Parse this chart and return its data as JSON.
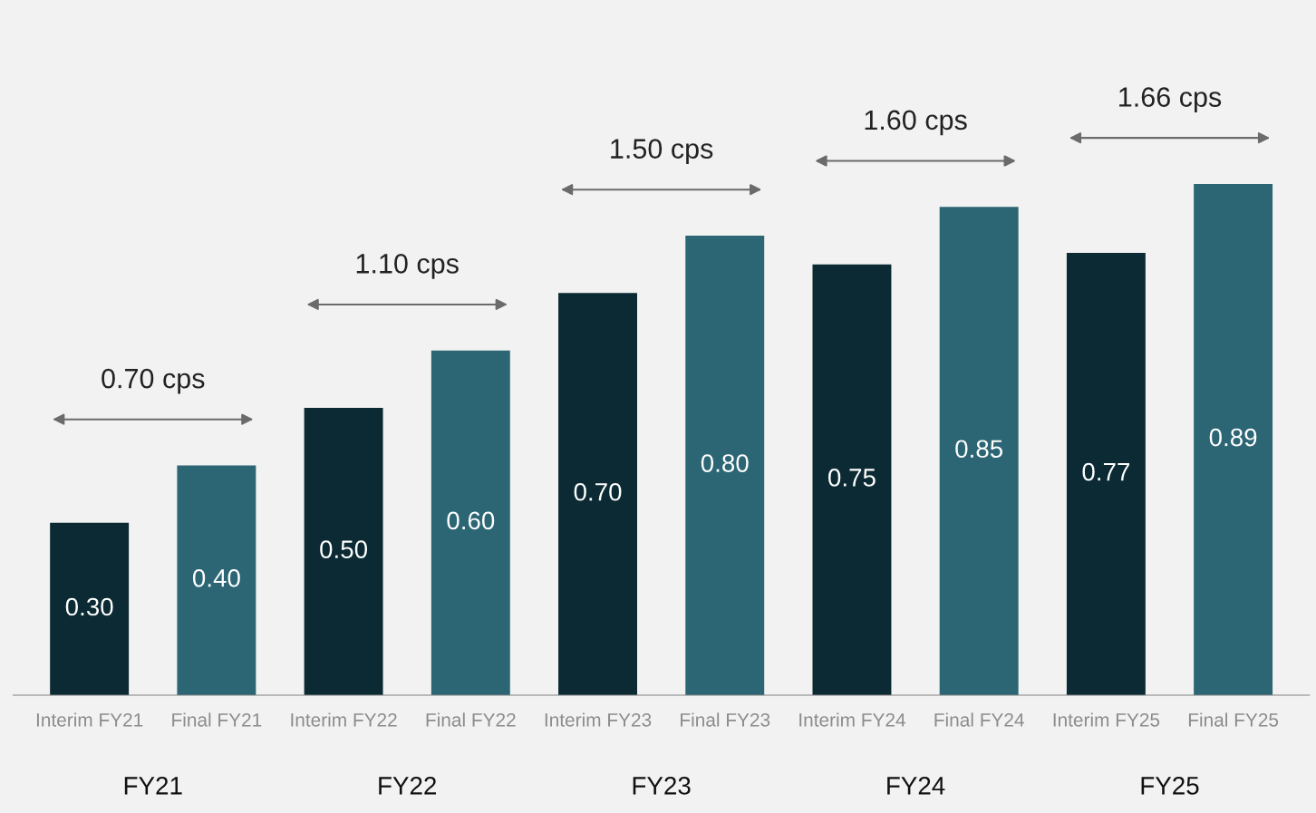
{
  "chart_data": {
    "type": "bar",
    "categories": [
      "Interim FY21",
      "Final FY21",
      "Interim FY22",
      "Final FY22",
      "Interim FY23",
      "Final FY23",
      "Interim FY24",
      "Final FY24",
      "Interim FY25",
      "Final FY25"
    ],
    "values": [
      0.3,
      0.4,
      0.5,
      0.6,
      0.7,
      0.8,
      0.75,
      0.85,
      0.77,
      0.89
    ],
    "colors": [
      "#0b2a33",
      "#2c6674",
      "#0b2a33",
      "#2c6674",
      "#0b2a33",
      "#2c6674",
      "#0b2a33",
      "#2c6674",
      "#0b2a33",
      "#2c6674"
    ],
    "value_labels": [
      "0.30",
      "0.40",
      "0.50",
      "0.60",
      "0.70",
      "0.80",
      "0.75",
      "0.85",
      "0.77",
      "0.89"
    ],
    "tick_labels": "x",
    "grid": false,
    "annotations": [
      "0.70 cps",
      "1.10 cps",
      "1.50 cps",
      "1.60 cps",
      "1.66 cps",
      "FY21",
      "FY22",
      "FY23",
      "FY24",
      "FY25"
    ]
  }
}
